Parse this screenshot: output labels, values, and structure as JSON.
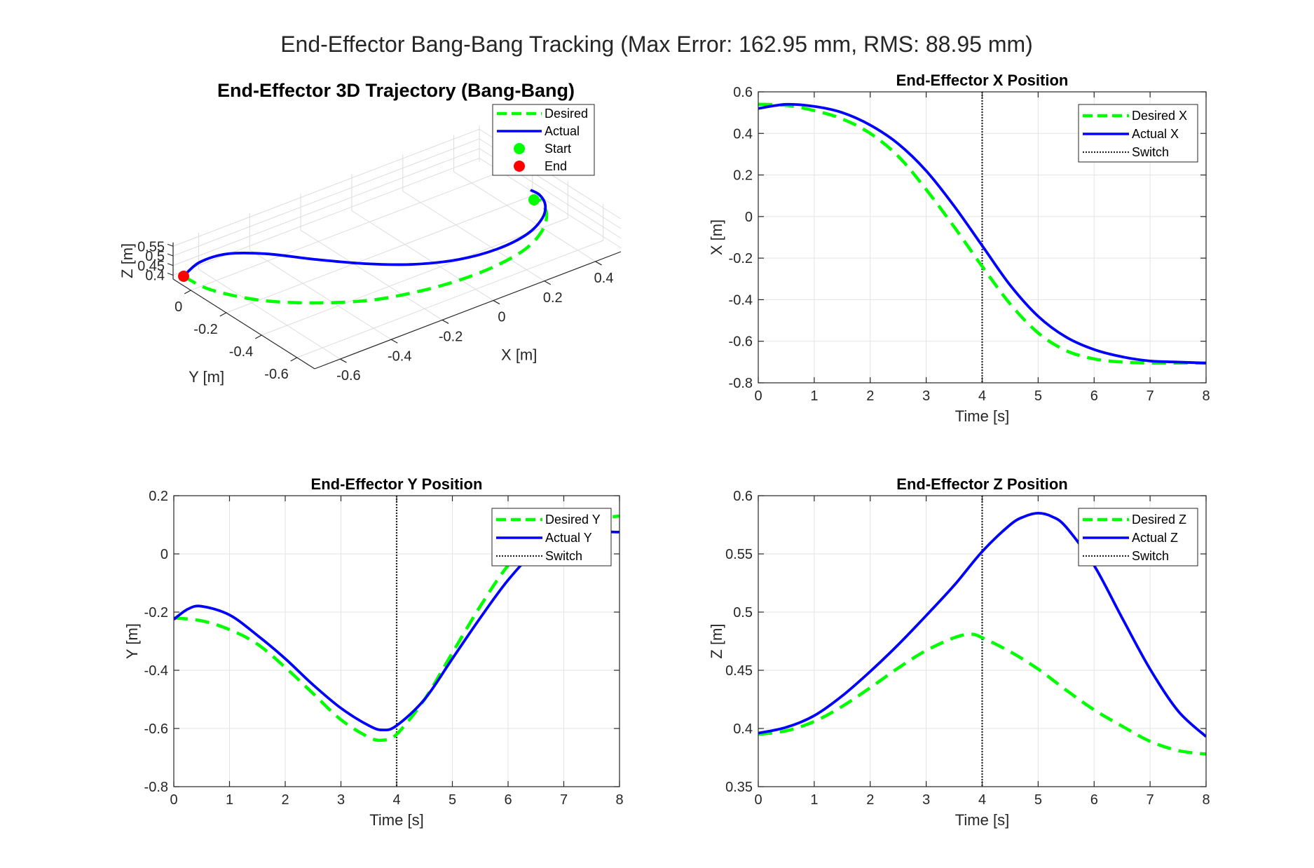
{
  "suptitle": "End-Effector Bang-Bang Tracking (Max Error: 162.95 mm, RMS: 88.95 mm)",
  "colors": {
    "desired": "#00ff00",
    "actual": "#0000ff",
    "switch": "#262626",
    "start": "#00ff00",
    "end": "#ff0000"
  },
  "chart_data": [
    {
      "type": "line3d",
      "title": "End-Effector 3D Trajectory (Bang-Bang)",
      "xlabel": "X [m]",
      "ylabel": "Y [m]",
      "zlabel": "Z [m]",
      "x_ticks": [
        "-0.6",
        "-0.4",
        "-0.2",
        "0",
        "0.2",
        "0.4"
      ],
      "y_ticks": [
        "0",
        "-0.2",
        "-0.4",
        "-0.6"
      ],
      "z_ticks": [
        "0.4",
        "0.45",
        "0.5",
        "0.55"
      ],
      "legend": {
        "position": "top-right",
        "entries": [
          "Desired",
          "Actual",
          "Start",
          "End"
        ]
      },
      "series": [
        {
          "name": "Desired",
          "style": "dashed"
        },
        {
          "name": "Actual",
          "style": "solid"
        },
        {
          "name": "Start",
          "style": "marker"
        },
        {
          "name": "End",
          "style": "marker"
        }
      ],
      "grid": true
    },
    {
      "type": "line",
      "title": "End-Effector X Position",
      "xlabel": "Time [s]",
      "ylabel": "X [m]",
      "xlim": [
        0,
        8
      ],
      "ylim": [
        -0.8,
        0.6
      ],
      "xticks": [
        "0",
        "1",
        "2",
        "3",
        "4",
        "5",
        "6",
        "7",
        "8"
      ],
      "yticks": [
        "-0.8",
        "-0.6",
        "-0.4",
        "-0.2",
        "0",
        "0.2",
        "0.4",
        "0.6"
      ],
      "switch_time": 4,
      "legend": {
        "position": "top-right",
        "entries": [
          "Desired X",
          "Actual X",
          "Switch"
        ]
      },
      "grid": true,
      "series": [
        {
          "name": "Desired X",
          "style": "dashed",
          "x": [
            0,
            0.5,
            1,
            1.5,
            2,
            2.5,
            3,
            3.5,
            4,
            4.5,
            5,
            5.5,
            6,
            6.5,
            7,
            7.5,
            8
          ],
          "y": [
            0.54,
            0.535,
            0.51,
            0.47,
            0.4,
            0.29,
            0.13,
            -0.05,
            -0.24,
            -0.42,
            -0.56,
            -0.645,
            -0.685,
            -0.7,
            -0.705,
            -0.705,
            -0.705
          ]
        },
        {
          "name": "Actual X",
          "style": "solid",
          "x": [
            0,
            0.5,
            1,
            1.5,
            2,
            2.5,
            3,
            3.5,
            4,
            4.5,
            5,
            5.5,
            6,
            6.5,
            7,
            7.5,
            8
          ],
          "y": [
            0.52,
            0.54,
            0.53,
            0.5,
            0.44,
            0.35,
            0.22,
            0.05,
            -0.14,
            -0.33,
            -0.48,
            -0.58,
            -0.64,
            -0.675,
            -0.695,
            -0.7,
            -0.705
          ]
        }
      ]
    },
    {
      "type": "line",
      "title": "End-Effector Y Position",
      "xlabel": "Time [s]",
      "ylabel": "Y [m]",
      "xlim": [
        0,
        8
      ],
      "ylim": [
        -0.8,
        0.2
      ],
      "xticks": [
        "0",
        "1",
        "2",
        "3",
        "4",
        "5",
        "6",
        "7",
        "8"
      ],
      "yticks": [
        "-0.8",
        "-0.6",
        "-0.4",
        "-0.2",
        "0",
        "0.2"
      ],
      "switch_time": 4,
      "legend": {
        "position": "top-right",
        "entries": [
          "Desired Y",
          "Actual Y",
          "Switch"
        ]
      },
      "grid": true,
      "series": [
        {
          "name": "Desired Y",
          "style": "dashed",
          "x": [
            0,
            0.5,
            1,
            1.5,
            2,
            2.5,
            3,
            3.5,
            3.75,
            4,
            4.5,
            5,
            5.5,
            6,
            6.5,
            7,
            7.5,
            8
          ],
          "y": [
            -0.22,
            -0.23,
            -0.26,
            -0.31,
            -0.39,
            -0.48,
            -0.57,
            -0.63,
            -0.64,
            -0.62,
            -0.5,
            -0.34,
            -0.18,
            -0.04,
            0.05,
            0.1,
            0.12,
            0.13
          ]
        },
        {
          "name": "Actual Y",
          "style": "solid",
          "x": [
            0,
            0.25,
            0.5,
            1,
            1.5,
            2,
            2.5,
            3,
            3.5,
            3.75,
            4,
            4.5,
            5,
            5.5,
            6,
            6.5,
            7,
            7.5,
            8
          ],
          "y": [
            -0.225,
            -0.19,
            -0.18,
            -0.21,
            -0.28,
            -0.36,
            -0.45,
            -0.53,
            -0.59,
            -0.605,
            -0.59,
            -0.5,
            -0.36,
            -0.22,
            -0.09,
            0.01,
            0.06,
            0.075,
            0.075
          ]
        }
      ]
    },
    {
      "type": "line",
      "title": "End-Effector Z Position",
      "xlabel": "Time [s]",
      "ylabel": "Z [m]",
      "xlim": [
        0,
        8
      ],
      "ylim": [
        0.35,
        0.6
      ],
      "xticks": [
        "0",
        "1",
        "2",
        "3",
        "4",
        "5",
        "6",
        "7",
        "8"
      ],
      "yticks": [
        "0.35",
        "0.4",
        "0.45",
        "0.5",
        "0.55",
        "0.6"
      ],
      "switch_time": 4,
      "legend": {
        "position": "top-right",
        "entries": [
          "Desired Z",
          "Actual Z",
          "Switch"
        ]
      },
      "grid": true,
      "series": [
        {
          "name": "Desired Z",
          "style": "dashed",
          "x": [
            0,
            0.5,
            1,
            1.5,
            2,
            2.5,
            3,
            3.5,
            3.8,
            4,
            4.5,
            5,
            5.5,
            6,
            6.5,
            7,
            7.5,
            8
          ],
          "y": [
            0.395,
            0.398,
            0.406,
            0.419,
            0.435,
            0.452,
            0.467,
            0.478,
            0.481,
            0.478,
            0.466,
            0.451,
            0.433,
            0.416,
            0.402,
            0.389,
            0.381,
            0.378
          ]
        },
        {
          "name": "Actual Z",
          "style": "solid",
          "x": [
            0,
            0.5,
            1,
            1.5,
            2,
            2.5,
            3,
            3.5,
            4,
            4.5,
            4.75,
            5,
            5.25,
            5.5,
            6,
            6.5,
            7,
            7.5,
            8
          ],
          "y": [
            0.396,
            0.401,
            0.411,
            0.428,
            0.449,
            0.472,
            0.497,
            0.523,
            0.552,
            0.575,
            0.582,
            0.585,
            0.582,
            0.573,
            0.54,
            0.495,
            0.451,
            0.415,
            0.393
          ]
        }
      ]
    }
  ]
}
